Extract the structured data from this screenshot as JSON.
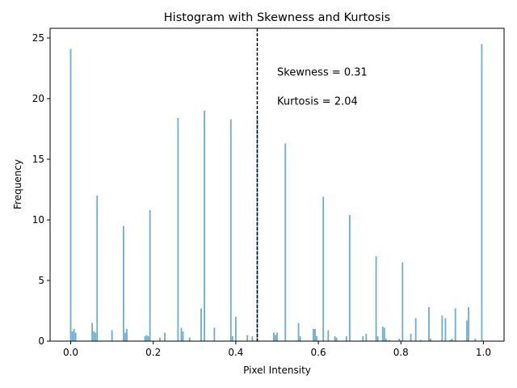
{
  "chart_data": {
    "type": "bar",
    "title": "Histogram with Skewness and Kurtosis",
    "xlabel": "Pixel Intensity",
    "ylabel": "Frequency",
    "xlim": [
      -0.05,
      1.05
    ],
    "ylim": [
      0,
      25.8
    ],
    "bin_width": 0.004,
    "xticks": [
      0.0,
      0.2,
      0.4,
      0.6,
      0.8,
      1.0
    ],
    "xtick_labels": [
      "0.0",
      "0.2",
      "0.4",
      "0.6",
      "0.8",
      "1.0"
    ],
    "yticks": [
      0,
      5,
      10,
      15,
      20,
      25
    ],
    "ytick_labels": [
      "0",
      "5",
      "10",
      "15",
      "20",
      "25"
    ],
    "grid": false,
    "bar_color": "#6baed6",
    "mean_line": {
      "x": 0.452,
      "style": "dashed",
      "color": "#000000"
    },
    "annotations": [
      {
        "text": "Skewness = 0.31",
        "x": 0.5,
        "y": 21.9
      },
      {
        "text": "Kurtosis = 2.04",
        "x": 0.5,
        "y": 19.5
      }
    ],
    "bins": [
      {
        "x": 0.0,
        "y": 24.1
      },
      {
        "x": 0.004,
        "y": 0.8
      },
      {
        "x": 0.008,
        "y": 1.0
      },
      {
        "x": 0.012,
        "y": 0.7
      },
      {
        "x": 0.052,
        "y": 1.5
      },
      {
        "x": 0.056,
        "y": 0.8
      },
      {
        "x": 0.06,
        "y": 0.7
      },
      {
        "x": 0.064,
        "y": 12.0
      },
      {
        "x": 0.1,
        "y": 0.9
      },
      {
        "x": 0.128,
        "y": 9.5
      },
      {
        "x": 0.132,
        "y": 0.7
      },
      {
        "x": 0.136,
        "y": 1.0
      },
      {
        "x": 0.18,
        "y": 0.4
      },
      {
        "x": 0.184,
        "y": 0.5
      },
      {
        "x": 0.188,
        "y": 0.4
      },
      {
        "x": 0.192,
        "y": 10.8
      },
      {
        "x": 0.216,
        "y": 0.3
      },
      {
        "x": 0.228,
        "y": 0.7
      },
      {
        "x": 0.26,
        "y": 18.4
      },
      {
        "x": 0.268,
        "y": 1.1
      },
      {
        "x": 0.272,
        "y": 0.8
      },
      {
        "x": 0.288,
        "y": 0.3
      },
      {
        "x": 0.316,
        "y": 2.7
      },
      {
        "x": 0.324,
        "y": 19.0
      },
      {
        "x": 0.348,
        "y": 1.1
      },
      {
        "x": 0.388,
        "y": 18.3
      },
      {
        "x": 0.392,
        "y": 0.4
      },
      {
        "x": 0.4,
        "y": 2.0
      },
      {
        "x": 0.428,
        "y": 0.5
      },
      {
        "x": 0.44,
        "y": 0.4
      },
      {
        "x": 0.452,
        "y": 18.4
      },
      {
        "x": 0.492,
        "y": 0.7
      },
      {
        "x": 0.496,
        "y": 0.5
      },
      {
        "x": 0.5,
        "y": 0.7
      },
      {
        "x": 0.52,
        "y": 16.3
      },
      {
        "x": 0.552,
        "y": 1.5
      },
      {
        "x": 0.556,
        "y": 0.4
      },
      {
        "x": 0.588,
        "y": 1.0
      },
      {
        "x": 0.592,
        "y": 1.0
      },
      {
        "x": 0.596,
        "y": 0.4
      },
      {
        "x": 0.612,
        "y": 11.9
      },
      {
        "x": 0.624,
        "y": 0.9
      },
      {
        "x": 0.64,
        "y": 0.4
      },
      {
        "x": 0.644,
        "y": 0.3
      },
      {
        "x": 0.668,
        "y": 0.4
      },
      {
        "x": 0.676,
        "y": 10.4
      },
      {
        "x": 0.708,
        "y": 0.4
      },
      {
        "x": 0.716,
        "y": 0.6
      },
      {
        "x": 0.74,
        "y": 7.0
      },
      {
        "x": 0.744,
        "y": 0.4
      },
      {
        "x": 0.756,
        "y": 1.2
      },
      {
        "x": 0.76,
        "y": 1.1
      },
      {
        "x": 0.764,
        "y": 0.2
      },
      {
        "x": 0.772,
        "y": 0.1
      },
      {
        "x": 0.796,
        "y": 0.2
      },
      {
        "x": 0.804,
        "y": 6.5
      },
      {
        "x": 0.824,
        "y": 0.6
      },
      {
        "x": 0.836,
        "y": 1.9
      },
      {
        "x": 0.848,
        "y": 0.1
      },
      {
        "x": 0.868,
        "y": 2.8
      },
      {
        "x": 0.872,
        "y": 0.2
      },
      {
        "x": 0.9,
        "y": 2.1
      },
      {
        "x": 0.908,
        "y": 1.9
      },
      {
        "x": 0.92,
        "y": 0.1
      },
      {
        "x": 0.924,
        "y": 0.2
      },
      {
        "x": 0.932,
        "y": 2.7
      },
      {
        "x": 0.96,
        "y": 1.7
      },
      {
        "x": 0.964,
        "y": 2.8
      },
      {
        "x": 0.98,
        "y": 0.2
      },
      {
        "x": 0.996,
        "y": 24.5
      }
    ]
  }
}
